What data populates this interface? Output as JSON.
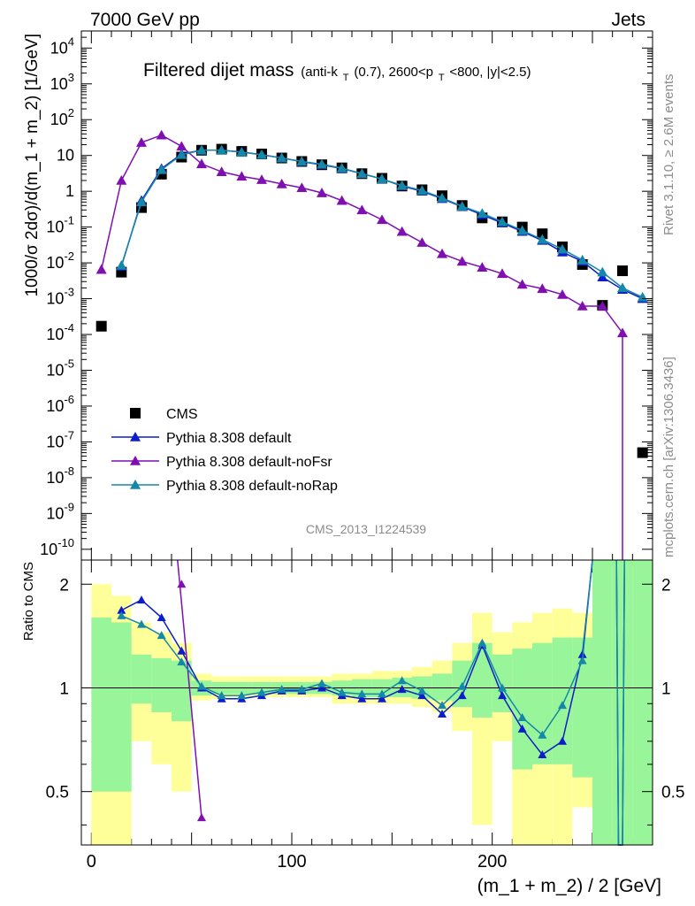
{
  "header": {
    "left": "7000 GeV pp",
    "right": "Jets"
  },
  "side": {
    "top": "Rivet 3.1.10, ≥ 2.6M events",
    "bottom": "mcplots.cern.ch [arXiv:1306.3436]"
  },
  "analysis_tag": "CMS_2013_I1224539",
  "title": {
    "main": "Filtered dijet mass",
    "sub_prefix": "(anti-k",
    "sub_k_index": "T",
    "sub_middle": "(0.7), 2600<p",
    "sub_p_index": "T",
    "sub_suffix": "<800, |y|<2.5)"
  },
  "axes": {
    "ylabel_top": "1000/σ 2dσ)/d(m_1 + m_2) [1/GeV]",
    "ylabel_bottom": "Ratio to CMS",
    "xlabel": "(m_1 + m_2) / 2 [GeV]"
  },
  "chart_data": [
    {
      "type": "scatter",
      "panel": "main",
      "xlim": [
        -5,
        280
      ],
      "ylim": [
        5e-11,
        30000.0
      ],
      "yscale": "log",
      "x_ticks": [
        0,
        100,
        200
      ],
      "y_tick_labels": [
        "10^-10",
        "10^-9",
        "10^-8",
        "10^-7",
        "10^-6",
        "10^-5",
        "10^-4",
        "10^-3",
        "10^-2",
        "10^-1",
        "1",
        "10",
        "10^2",
        "10^3",
        "10^4"
      ],
      "legend_position": "lower-left",
      "series": [
        {
          "name": "CMS",
          "color": "#000000",
          "marker": "square",
          "x": [
            5,
            15,
            25,
            35,
            45,
            55,
            65,
            75,
            85,
            95,
            105,
            115,
            125,
            135,
            145,
            155,
            165,
            175,
            185,
            195,
            205,
            215,
            225,
            235,
            245,
            255,
            265,
            275
          ],
          "y": [
            0.00017,
            0.0055,
            0.35,
            3.0,
            9.0,
            14,
            15,
            13,
            11,
            8.5,
            6.8,
            5.5,
            4.5,
            3.1,
            2.3,
            1.4,
            1.1,
            0.75,
            0.4,
            0.18,
            0.14,
            0.1,
            0.065,
            0.028,
            0.009,
            0.00065,
            0.006,
            5e-08
          ]
        },
        {
          "name": "Pythia 8.308 default",
          "color": "#0c1dc9",
          "marker": "triangle",
          "x": [
            15,
            25,
            35,
            45,
            55,
            65,
            75,
            85,
            95,
            105,
            115,
            125,
            135,
            145,
            155,
            165,
            175,
            185,
            195,
            205,
            215,
            225,
            235,
            245,
            255,
            265,
            275
          ],
          "y": [
            0.008,
            0.55,
            4.3,
            11,
            14,
            14,
            12.5,
            10.5,
            8.5,
            6.7,
            5.5,
            4.3,
            3.1,
            2.2,
            1.4,
            1.0,
            0.62,
            0.37,
            0.22,
            0.13,
            0.075,
            0.042,
            0.02,
            0.011,
            0.004,
            0.0018,
            0.001
          ]
        },
        {
          "name": "Pythia 8.308 default-noFsr",
          "color": "#7f0fb1",
          "marker": "triangle",
          "x": [
            5,
            15,
            25,
            35,
            45,
            55,
            65,
            75,
            85,
            95,
            105,
            115,
            125,
            135,
            145,
            155,
            165,
            175,
            185,
            195,
            205,
            215,
            225,
            235,
            245,
            255,
            265
          ],
          "y": [
            0.0065,
            2.0,
            23,
            37,
            18,
            5.8,
            3.5,
            2.6,
            2.1,
            1.6,
            1.25,
            0.9,
            0.55,
            0.3,
            0.16,
            0.075,
            0.037,
            0.018,
            0.011,
            0.0075,
            0.005,
            0.0025,
            0.0019,
            0.0013,
            0.00062,
            0.00062,
            0.00011
          ]
        },
        {
          "name": "Pythia 8.308 default-noRap",
          "color": "#1488a8",
          "marker": "triangle",
          "x": [
            15,
            25,
            35,
            45,
            55,
            65,
            75,
            85,
            95,
            105,
            115,
            125,
            135,
            145,
            155,
            165,
            175,
            185,
            195,
            205,
            215,
            225,
            235,
            245,
            255,
            265,
            275
          ],
          "y": [
            0.0085,
            0.5,
            4.0,
            10.5,
            14,
            14,
            12.3,
            10.5,
            8.5,
            6.8,
            5.7,
            4.4,
            3.1,
            2.2,
            1.45,
            1.05,
            0.65,
            0.38,
            0.24,
            0.14,
            0.08,
            0.045,
            0.024,
            0.012,
            0.0055,
            0.002,
            0.0011
          ]
        }
      ]
    },
    {
      "type": "line",
      "panel": "ratio",
      "xlim": [
        -5,
        280
      ],
      "ylim": [
        0.35,
        2.35
      ],
      "yscale": "log",
      "y_tick_labels": [
        "0.5",
        "1",
        "2"
      ],
      "reference_line": 1,
      "bands": {
        "x_edges": [
          0,
          10,
          20,
          30,
          40,
          50,
          60,
          70,
          80,
          90,
          100,
          110,
          120,
          130,
          140,
          150,
          160,
          170,
          180,
          190,
          200,
          210,
          220,
          230,
          240,
          250,
          260,
          270,
          280
        ],
        "yellow_low": [
          0.35,
          0.35,
          0.7,
          0.6,
          0.5,
          0.92,
          0.93,
          0.94,
          0.94,
          0.94,
          0.94,
          0.94,
          0.9,
          0.9,
          0.9,
          0.9,
          0.88,
          0.85,
          0.75,
          0.4,
          0.7,
          0.35,
          0.35,
          0.35,
          0.45,
          0.35,
          0.35,
          0.35
        ],
        "yellow_high": [
          2.0,
          1.85,
          1.55,
          1.45,
          1.35,
          1.1,
          1.08,
          1.08,
          1.08,
          1.08,
          1.08,
          1.08,
          1.1,
          1.1,
          1.12,
          1.12,
          1.15,
          1.2,
          1.35,
          1.65,
          1.45,
          1.55,
          1.65,
          1.7,
          1.65,
          2.35,
          2.35,
          2.35
        ],
        "green_low": [
          0.5,
          0.5,
          0.9,
          0.85,
          0.8,
          0.95,
          0.96,
          0.96,
          0.96,
          0.96,
          0.96,
          0.96,
          0.95,
          0.94,
          0.94,
          0.94,
          0.93,
          0.92,
          0.88,
          0.82,
          0.85,
          0.58,
          0.6,
          0.6,
          0.55,
          0.35,
          0.35,
          0.35
        ],
        "green_high": [
          1.6,
          1.55,
          1.25,
          1.22,
          1.2,
          1.05,
          1.04,
          1.04,
          1.04,
          1.04,
          1.04,
          1.04,
          1.05,
          1.06,
          1.06,
          1.07,
          1.08,
          1.1,
          1.2,
          1.35,
          1.25,
          1.3,
          1.35,
          1.4,
          1.4,
          2.35,
          2.35,
          2.35
        ]
      },
      "series": [
        {
          "name": "Pythia 8.308 default",
          "color": "#0c1dc9",
          "x": [
            15,
            25,
            35,
            45,
            55,
            65,
            75,
            85,
            95,
            105,
            115,
            125,
            135,
            145,
            155,
            165,
            175,
            185,
            195,
            205,
            215,
            225,
            235,
            245
          ],
          "y": [
            1.68,
            1.8,
            1.6,
            1.28,
            1.0,
            0.93,
            0.93,
            0.95,
            0.98,
            0.98,
            1.0,
            0.95,
            0.93,
            0.93,
            0.99,
            0.95,
            0.84,
            0.95,
            1.33,
            0.95,
            0.76,
            0.64,
            0.7,
            1.25
          ]
        },
        {
          "name": "Pythia 8.308 default-noFsr",
          "color": "#7f0fb1",
          "x": [
            45,
            55
          ],
          "y": [
            2.0,
            0.42
          ]
        },
        {
          "name": "Pythia 8.308 default-noRap",
          "color": "#1488a8",
          "x": [
            15,
            25,
            35,
            45,
            55,
            65,
            75,
            85,
            95,
            105,
            115,
            125,
            135,
            145,
            155,
            165,
            175,
            185,
            195,
            205,
            215,
            225,
            235,
            245
          ],
          "y": [
            1.62,
            1.53,
            1.42,
            1.19,
            1.01,
            0.95,
            0.95,
            0.97,
            0.99,
            0.99,
            1.03,
            0.97,
            0.96,
            0.96,
            1.05,
            0.98,
            0.89,
            1.01,
            1.35,
            1.0,
            0.82,
            0.73,
            0.89,
            1.2
          ]
        }
      ]
    }
  ]
}
